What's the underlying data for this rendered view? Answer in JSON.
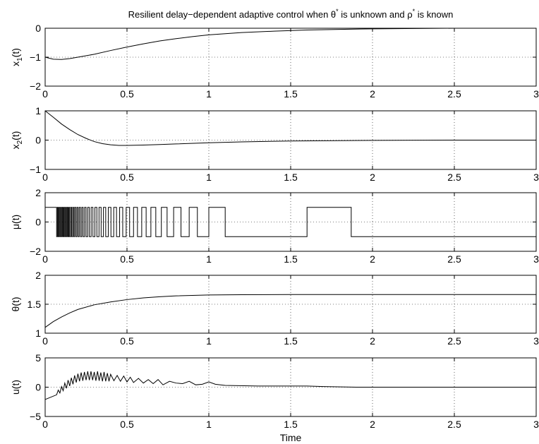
{
  "chart_data": {
    "title": "Resilient delay−dependent adaptive control when θ* is unknown and ρ* is known",
    "title_parts": {
      "prefix": "Resilient delay−dependent adaptive control when θ",
      "sup1": "*",
      "middle": " is unknown and ρ",
      "sup2": "*",
      "suffix": " is known"
    },
    "xlabel": "Time",
    "xlim": [
      0,
      3
    ],
    "xticks": [
      "0",
      "0.5",
      "1",
      "1.5",
      "2",
      "2.5",
      "3"
    ],
    "grid": "dotted",
    "subplots": [
      {
        "type": "line",
        "ylabel_base": "x",
        "ylabel_sub": "1",
        "ylabel_suffix": "(t)",
        "ylim": [
          -2,
          0
        ],
        "yticks": [
          "−2",
          "−1",
          "0"
        ],
        "x": [
          0,
          0.05,
          0.1,
          0.15,
          0.2,
          0.3,
          0.4,
          0.5,
          0.6,
          0.7,
          0.8,
          0.9,
          1.0,
          1.2,
          1.4,
          1.6,
          1.8,
          2.0,
          2.5,
          3.0
        ],
        "y": [
          -1.0,
          -1.07,
          -1.08,
          -1.05,
          -1.0,
          -0.9,
          -0.77,
          -0.65,
          -0.54,
          -0.44,
          -0.36,
          -0.29,
          -0.23,
          -0.15,
          -0.1,
          -0.06,
          -0.04,
          -0.02,
          0.0,
          0.0
        ]
      },
      {
        "type": "line",
        "ylabel_base": "x",
        "ylabel_sub": "2",
        "ylabel_suffix": "(t)",
        "ylim": [
          -1,
          1
        ],
        "yticks": [
          "−1",
          "0",
          "1"
        ],
        "x": [
          0,
          0.05,
          0.1,
          0.15,
          0.2,
          0.25,
          0.3,
          0.35,
          0.4,
          0.45,
          0.5,
          0.6,
          0.7,
          0.8,
          1.0,
          1.2,
          1.5,
          2.0,
          2.5,
          3.0
        ],
        "y": [
          1.0,
          0.78,
          0.55,
          0.36,
          0.19,
          0.06,
          -0.05,
          -0.12,
          -0.16,
          -0.18,
          -0.18,
          -0.17,
          -0.15,
          -0.13,
          -0.09,
          -0.06,
          -0.03,
          -0.01,
          0.0,
          0.0
        ]
      },
      {
        "type": "line",
        "ylabel_base": "μ(t)",
        "ylim": [
          -2,
          2
        ],
        "yticks": [
          "−2",
          "0",
          "2"
        ],
        "switching_times": [
          0.07,
          0.075,
          0.08,
          0.085,
          0.09,
          0.095,
          0.1,
          0.105,
          0.11,
          0.115,
          0.12,
          0.125,
          0.13,
          0.135,
          0.14,
          0.145,
          0.15,
          0.156,
          0.162,
          0.168,
          0.174,
          0.18,
          0.187,
          0.194,
          0.201,
          0.208,
          0.216,
          0.224,
          0.232,
          0.241,
          0.25,
          0.26,
          0.27,
          0.281,
          0.292,
          0.304,
          0.316,
          0.329,
          0.342,
          0.356,
          0.37,
          0.386,
          0.402,
          0.419,
          0.436,
          0.455,
          0.474,
          0.495,
          0.516,
          0.54,
          0.564,
          0.59,
          0.617,
          0.646,
          0.676,
          0.71,
          0.745,
          0.785,
          0.83,
          0.88,
          0.93,
          1.0,
          1.1,
          1.6,
          1.87
        ],
        "initial_value": 1,
        "values_levels": [
          1,
          -1
        ]
      },
      {
        "type": "line",
        "ylabel_base": "θ(t)",
        "ylim": [
          1,
          2
        ],
        "yticks": [
          "1",
          "1.5",
          "2"
        ],
        "x": [
          0,
          0.05,
          0.1,
          0.15,
          0.2,
          0.3,
          0.4,
          0.5,
          0.6,
          0.7,
          0.8,
          1.0,
          1.2,
          1.5,
          2.0,
          2.5,
          3.0
        ],
        "y": [
          1.1,
          1.2,
          1.28,
          1.35,
          1.41,
          1.49,
          1.54,
          1.58,
          1.61,
          1.63,
          1.645,
          1.66,
          1.665,
          1.668,
          1.668,
          1.668,
          1.668
        ]
      },
      {
        "type": "line",
        "ylabel_base": "u(t)",
        "ylim": [
          -5,
          5
        ],
        "yticks": [
          "−5",
          "0",
          "5"
        ],
        "x": [
          0,
          0.07,
          0.08,
          0.09,
          0.1,
          0.11,
          0.12,
          0.13,
          0.14,
          0.15,
          0.16,
          0.17,
          0.18,
          0.19,
          0.2,
          0.21,
          0.22,
          0.23,
          0.24,
          0.25,
          0.26,
          0.27,
          0.28,
          0.29,
          0.3,
          0.31,
          0.32,
          0.33,
          0.34,
          0.35,
          0.36,
          0.37,
          0.38,
          0.39,
          0.4,
          0.42,
          0.44,
          0.46,
          0.48,
          0.5,
          0.52,
          0.54,
          0.57,
          0.6,
          0.63,
          0.66,
          0.69,
          0.72,
          0.76,
          0.8,
          0.84,
          0.88,
          0.92,
          0.96,
          1.0,
          1.04,
          1.1,
          1.3,
          1.6,
          1.7,
          1.9,
          2.0,
          3.0
        ],
        "y": [
          -2.1,
          -1.3,
          -0.5,
          -1.0,
          0.1,
          -0.6,
          0.7,
          -0.2,
          1.2,
          0.2,
          1.6,
          0.5,
          2.0,
          0.8,
          2.3,
          1.0,
          2.5,
          1.1,
          2.6,
          1.2,
          2.7,
          1.2,
          2.7,
          1.2,
          2.6,
          1.1,
          2.7,
          1.1,
          2.5,
          1.0,
          2.6,
          1.0,
          2.4,
          1.0,
          2.2,
          1.1,
          2.0,
          1.0,
          1.9,
          0.9,
          1.7,
          0.8,
          1.5,
          0.7,
          1.3,
          0.6,
          1.3,
          0.4,
          1.0,
          0.7,
          0.6,
          1.0,
          0.4,
          0.5,
          0.9,
          0.5,
          0.3,
          0.2,
          0.2,
          0.1,
          0.0,
          0.0,
          0.0
        ]
      }
    ]
  }
}
